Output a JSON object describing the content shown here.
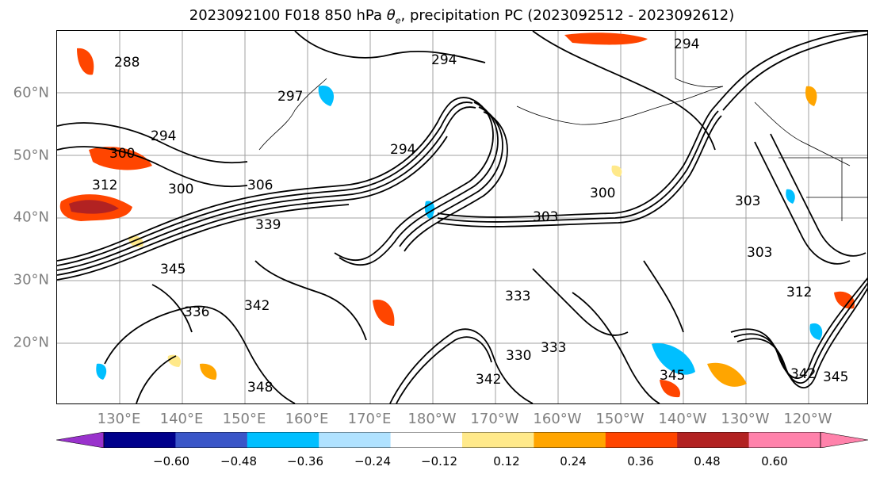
{
  "title": {
    "prefix": "2023092100 F018 850 hPa ",
    "symbol": "θ",
    "symbol_sub": "e",
    "suffix": ", precipitation PC (2023092512 - 2023092612)"
  },
  "map": {
    "projection": "cylindrical",
    "lat_labels": [
      "60°N",
      "50°N",
      "40°N",
      "30°N",
      "20°N"
    ],
    "lon_labels": [
      "130°E",
      "140°E",
      "150°E",
      "160°E",
      "170°E",
      "180°W",
      "170°W",
      "160°W",
      "150°W",
      "140°W",
      "130°W",
      "120°W"
    ],
    "contour_labels": [
      "288",
      "294",
      "297",
      "294",
      "294",
      "294",
      "300",
      "312",
      "300",
      "306",
      "300",
      "303",
      "303",
      "339",
      "345",
      "342",
      "333",
      "330",
      "333",
      "342",
      "345",
      "342",
      "345",
      "348",
      "336",
      "303",
      "312"
    ],
    "grid": true,
    "coastlines": true
  },
  "colorbar": {
    "extend": "both",
    "ticks": [
      "−0.60",
      "−0.48",
      "−0.36",
      "−0.24",
      "−0.12",
      "0.12",
      "0.24",
      "0.36",
      "0.48",
      "0.60"
    ],
    "colors": [
      "#9932cc",
      "#00008b",
      "#3a56c8",
      "#00bfff",
      "#b0e2ff",
      "#ffffff",
      "#ffe98a",
      "#ffa500",
      "#ff4500",
      "#b22222",
      "#ff82ab",
      "#ff82ab"
    ]
  }
}
